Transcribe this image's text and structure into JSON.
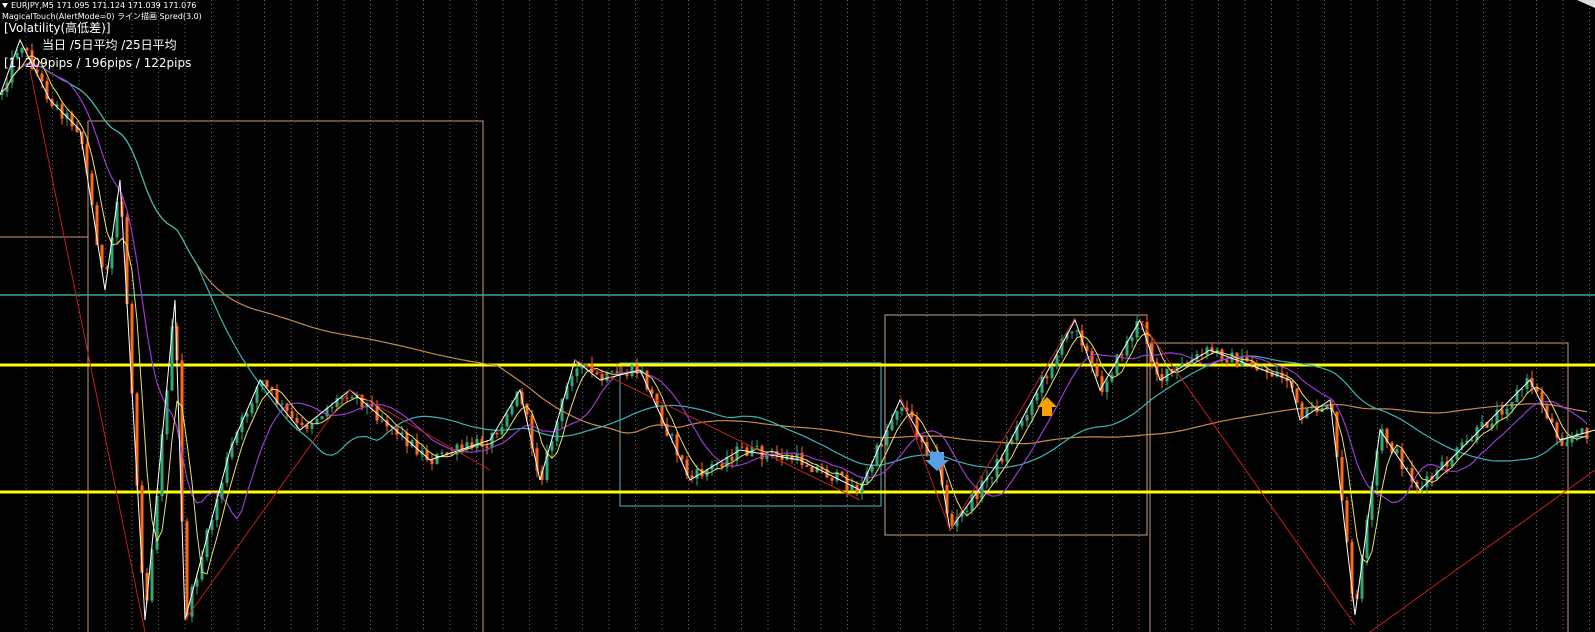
{
  "header": {
    "symbol_line": "EURJPY,M5  171.095 171.124 171.039 171.076",
    "indicator_line": "MagicalTouch(AlertMode=0) ライン描画 Spred(3.0)"
  },
  "volatility": {
    "title": "[Volatility(高低差)]",
    "columns": "当日 /5日平均 /25日平均",
    "row": "[1] 209pips / 196pips / 122pips"
  }
}
